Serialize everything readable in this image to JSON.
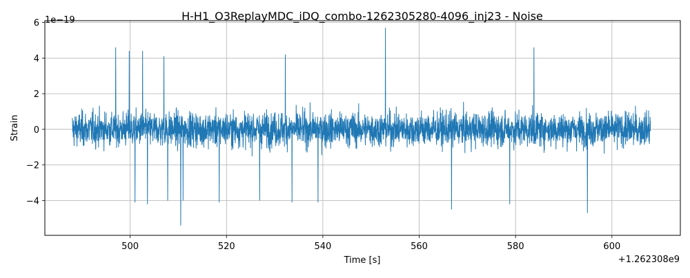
{
  "chart_data": {
    "type": "line",
    "title": "H-H1_O3ReplayMDC_iDQ_combo-1262305280-4096_inj23 - Noise",
    "xlabel": "Time [s]",
    "ylabel": "Strain",
    "x_offset_label": "+1.262308e9",
    "y_scale_label": "1e−19",
    "xlim": [
      482.3,
      614.2
    ],
    "ylim": [
      -5.95,
      6.1
    ],
    "x_ticks": [
      500,
      520,
      540,
      560,
      580,
      600
    ],
    "x_tick_labels": [
      "500",
      "520",
      "540",
      "560",
      "580",
      "600"
    ],
    "y_ticks": [
      -4,
      -2,
      0,
      2,
      4,
      6
    ],
    "y_tick_labels": [
      "−4",
      "−2",
      "0",
      "2",
      "4",
      "6"
    ],
    "grid": true,
    "series": [
      {
        "color": "#1f77b4",
        "x_range": [
          488.0,
          608.0
        ],
        "typical_envelope": 2.0,
        "extrema": [
          {
            "x": 497.0,
            "y": 4.6
          },
          {
            "x": 499.8,
            "y": 4.4
          },
          {
            "x": 501.0,
            "y": -4.1
          },
          {
            "x": 502.6,
            "y": 4.4
          },
          {
            "x": 503.6,
            "y": -4.2
          },
          {
            "x": 507.0,
            "y": 4.1
          },
          {
            "x": 507.8,
            "y": -4.0
          },
          {
            "x": 510.5,
            "y": -5.4
          },
          {
            "x": 511.0,
            "y": -4.0
          },
          {
            "x": 518.5,
            "y": -4.1
          },
          {
            "x": 526.9,
            "y": -4.0
          },
          {
            "x": 532.2,
            "y": 4.2
          },
          {
            "x": 533.6,
            "y": -4.1
          },
          {
            "x": 539.0,
            "y": -4.1
          },
          {
            "x": 553.0,
            "y": 5.7
          },
          {
            "x": 566.7,
            "y": -4.5
          },
          {
            "x": 578.8,
            "y": -4.2
          },
          {
            "x": 583.8,
            "y": 4.6
          },
          {
            "x": 594.9,
            "y": -4.7
          }
        ]
      }
    ]
  }
}
